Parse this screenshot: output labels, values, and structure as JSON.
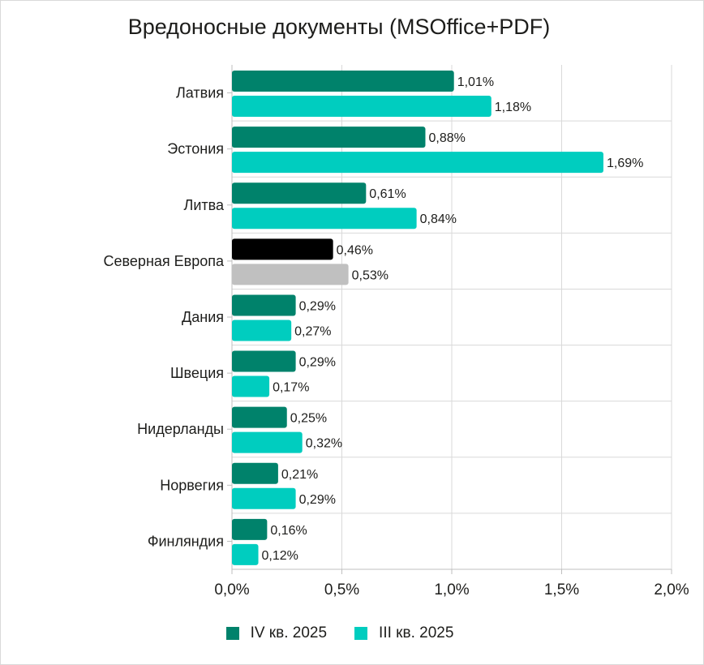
{
  "chart_data": {
    "type": "bar",
    "orientation": "horizontal",
    "title": "Вредоносные документы (MSOffice+PDF)",
    "categories": [
      "Латвия",
      "Эстония",
      "Литва",
      "Северная Европа",
      "Дания",
      "Швеция",
      "Нидерланды",
      "Норвегия",
      "Финляндия"
    ],
    "series": [
      {
        "name": "IV кв. 2025",
        "color": "#00826b",
        "values": [
          1.01,
          0.88,
          0.61,
          0.46,
          0.29,
          0.29,
          0.25,
          0.21,
          0.16
        ],
        "labels": [
          "1,01%",
          "0,88%",
          "0,61%",
          "0,46%",
          "0,29%",
          "0,29%",
          "0,25%",
          "0,21%",
          "0,16%"
        ]
      },
      {
        "name": "III кв. 2025",
        "color": "#00cdbf",
        "values": [
          1.18,
          1.69,
          0.84,
          0.53,
          0.27,
          0.17,
          0.32,
          0.29,
          0.12
        ],
        "labels": [
          "1,18%",
          "1,69%",
          "0,84%",
          "0,53%",
          "0,27%",
          "0,17%",
          "0,32%",
          "0,29%",
          "0,12%"
        ]
      }
    ],
    "highlight": {
      "category": "Северная Европа",
      "colors": [
        "#000000",
        "#c0c0c0"
      ]
    },
    "xlim": [
      0,
      2.0
    ],
    "xticks": [
      0,
      0.5,
      1.0,
      1.5,
      2.0
    ],
    "xtick_labels": [
      "0,0%",
      "0,5%",
      "1,0%",
      "1,5%",
      "2,0%"
    ],
    "xlabel": "",
    "ylabel": "",
    "grid": true,
    "legend_position": "bottom"
  }
}
